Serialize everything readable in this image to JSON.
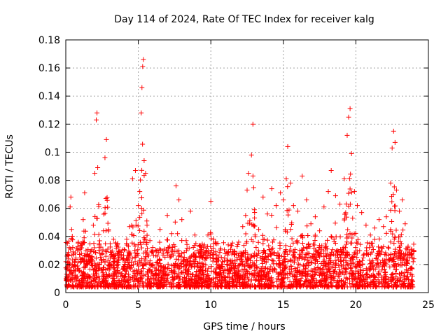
{
  "chart_data": {
    "type": "scatter",
    "title": "Day 114 of 2024, Rate Of TEC Index for receiver kalg",
    "xlabel": "GPS time / hours",
    "ylabel": "ROTI / TECUs",
    "xlim": [
      0,
      25
    ],
    "ylim": [
      0,
      0.18
    ],
    "xticks": [
      0,
      5,
      10,
      15,
      20,
      25
    ],
    "xtick_labels": [
      "0",
      "5",
      "10",
      "15",
      "20",
      "25"
    ],
    "yticks": [
      0,
      0.02,
      0.04,
      0.06,
      0.08,
      0.1,
      0.12,
      0.14,
      0.16,
      0.18
    ],
    "ytick_labels": [
      "0",
      "0.02",
      "0.04",
      "0.06",
      "0.08",
      "0.1",
      "0.12",
      "0.14",
      "0.16",
      "0.18"
    ],
    "grid": true,
    "marker": "+",
    "color": "#ff0000",
    "series": [
      {
        "name": "ROTI",
        "points": [
          [
            0.1,
            0.017
          ],
          [
            0.2,
            0.024
          ],
          [
            0.3,
            0.061
          ],
          [
            0.35,
            0.068
          ],
          [
            0.4,
            0.045
          ],
          [
            0.5,
            0.029
          ],
          [
            0.6,
            0.022
          ],
          [
            0.8,
            0.019
          ],
          [
            1.0,
            0.031
          ],
          [
            1.2,
            0.052
          ],
          [
            1.3,
            0.071
          ],
          [
            1.5,
            0.027
          ],
          [
            1.7,
            0.024
          ],
          [
            1.9,
            0.048
          ],
          [
            2.0,
            0.085
          ],
          [
            2.1,
            0.123
          ],
          [
            2.15,
            0.128
          ],
          [
            2.2,
            0.089
          ],
          [
            2.3,
            0.034
          ],
          [
            2.5,
            0.028
          ],
          [
            2.6,
            0.044
          ],
          [
            2.7,
            0.096
          ],
          [
            2.8,
            0.109
          ],
          [
            2.9,
            0.031
          ],
          [
            3.1,
            0.026
          ],
          [
            3.3,
            0.038
          ],
          [
            3.5,
            0.033
          ],
          [
            3.8,
            0.027
          ],
          [
            4.0,
            0.024
          ],
          [
            4.2,
            0.038
          ],
          [
            4.4,
            0.047
          ],
          [
            4.6,
            0.081
          ],
          [
            4.8,
            0.087
          ],
          [
            5.0,
            0.062
          ],
          [
            5.1,
            0.072
          ],
          [
            5.2,
            0.128
          ],
          [
            5.25,
            0.146
          ],
          [
            5.3,
            0.161
          ],
          [
            5.35,
            0.166
          ],
          [
            5.4,
            0.094
          ],
          [
            5.5,
            0.085
          ],
          [
            5.6,
            0.048
          ],
          [
            5.8,
            0.037
          ],
          [
            6.0,
            0.029
          ],
          [
            6.3,
            0.026
          ],
          [
            6.5,
            0.045
          ],
          [
            6.8,
            0.031
          ],
          [
            7.0,
            0.055
          ],
          [
            7.3,
            0.042
          ],
          [
            7.6,
            0.076
          ],
          [
            7.8,
            0.066
          ],
          [
            8.0,
            0.052
          ],
          [
            8.3,
            0.037
          ],
          [
            8.6,
            0.058
          ],
          [
            8.9,
            0.041
          ],
          [
            9.2,
            0.033
          ],
          [
            9.5,
            0.027
          ],
          [
            9.8,
            0.041
          ],
          [
            10.0,
            0.065
          ],
          [
            10.2,
            0.038
          ],
          [
            10.5,
            0.026
          ],
          [
            10.8,
            0.022
          ],
          [
            11.2,
            0.034
          ],
          [
            11.5,
            0.029
          ],
          [
            11.8,
            0.025
          ],
          [
            12.2,
            0.047
          ],
          [
            12.4,
            0.055
          ],
          [
            12.5,
            0.073
          ],
          [
            12.6,
            0.085
          ],
          [
            12.8,
            0.098
          ],
          [
            12.9,
            0.12
          ],
          [
            13.0,
            0.059
          ],
          [
            13.3,
            0.045
          ],
          [
            13.6,
            0.068
          ],
          [
            13.9,
            0.056
          ],
          [
            14.2,
            0.074
          ],
          [
            14.5,
            0.062
          ],
          [
            14.8,
            0.071
          ],
          [
            15.0,
            0.066
          ],
          [
            15.2,
            0.081
          ],
          [
            15.3,
            0.104
          ],
          [
            15.5,
            0.078
          ],
          [
            15.7,
            0.062
          ],
          [
            16.0,
            0.058
          ],
          [
            16.3,
            0.083
          ],
          [
            16.6,
            0.066
          ],
          [
            16.9,
            0.049
          ],
          [
            17.2,
            0.054
          ],
          [
            17.5,
            0.044
          ],
          [
            17.8,
            0.061
          ],
          [
            18.1,
            0.072
          ],
          [
            18.3,
            0.087
          ],
          [
            18.6,
            0.069
          ],
          [
            18.9,
            0.063
          ],
          [
            19.2,
            0.081
          ],
          [
            19.4,
            0.112
          ],
          [
            19.5,
            0.125
          ],
          [
            19.6,
            0.131
          ],
          [
            19.7,
            0.099
          ],
          [
            19.9,
            0.072
          ],
          [
            20.1,
            0.062
          ],
          [
            20.4,
            0.057
          ],
          [
            20.7,
            0.048
          ],
          [
            21.0,
            0.041
          ],
          [
            21.3,
            0.046
          ],
          [
            21.6,
            0.052
          ],
          [
            21.9,
            0.047
          ],
          [
            22.1,
            0.054
          ],
          [
            22.4,
            0.078
          ],
          [
            22.5,
            0.103
          ],
          [
            22.6,
            0.115
          ],
          [
            22.7,
            0.107
          ],
          [
            22.8,
            0.073
          ],
          [
            23.0,
            0.058
          ],
          [
            23.2,
            0.066
          ],
          [
            23.4,
            0.049
          ],
          [
            23.6,
            0.033
          ],
          [
            23.8,
            0.027
          ],
          [
            23.95,
            0.022
          ]
        ]
      }
    ]
  }
}
